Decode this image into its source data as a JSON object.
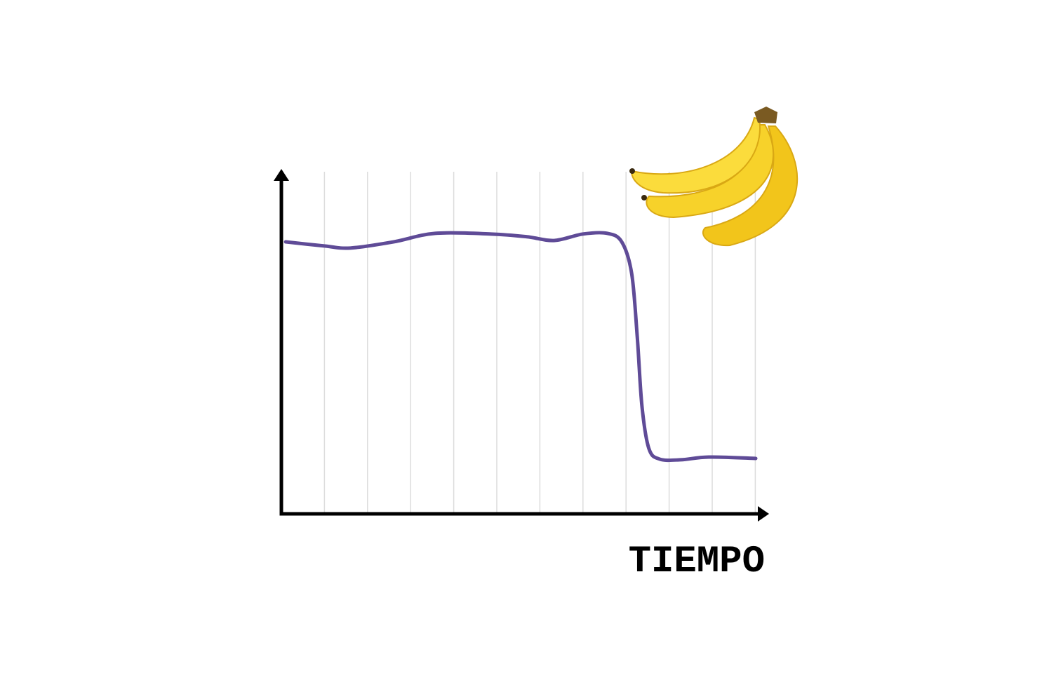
{
  "chart_data": {
    "type": "line",
    "xlabel": "TIEMPO",
    "x": [
      0.1,
      1,
      1.6,
      2.6,
      3.57,
      4.87,
      5.7,
      6.33,
      7,
      7.56,
      7.9,
      8.13,
      8.26,
      8.37,
      8.53,
      8.78,
      9.27,
      9.92,
      11.01
    ],
    "values": [
      79.5,
      78.3,
      77.7,
      79.5,
      82,
      81.8,
      81,
      79.9,
      81.8,
      82,
      79.5,
      70.3,
      51.8,
      31.4,
      19.1,
      16,
      15.8,
      16.6,
      16.2
    ],
    "color": "#5f4b97",
    "xlim": [
      0,
      11.2
    ],
    "ylim": [
      0,
      100
    ],
    "xticks": [
      1,
      2,
      3,
      4,
      5,
      6,
      7,
      8,
      9,
      10,
      11
    ],
    "grid": true
  }
}
